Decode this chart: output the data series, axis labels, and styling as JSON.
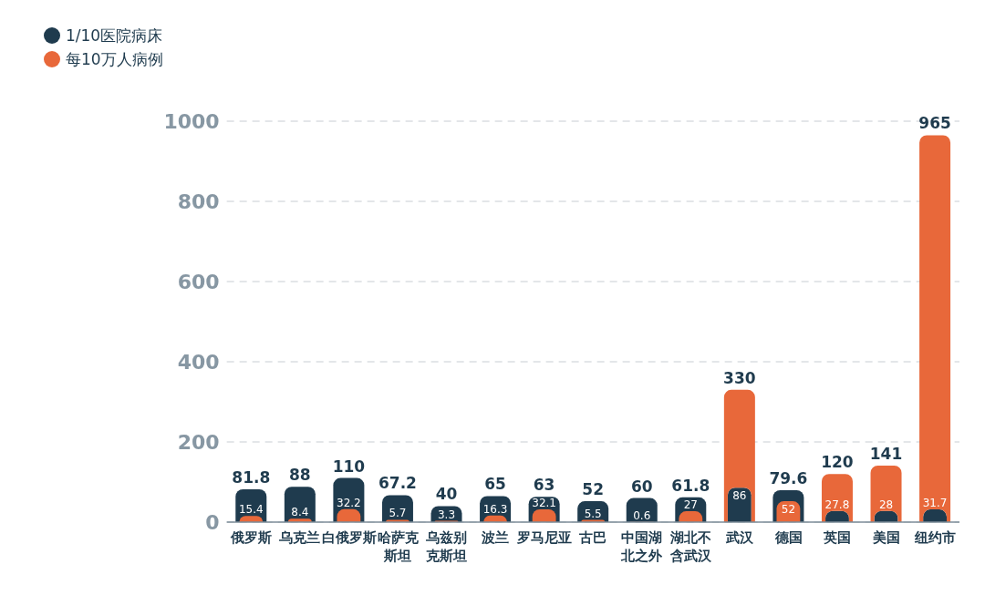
{
  "chart_data": {
    "type": "bar",
    "categories": [
      "俄罗斯",
      "乌克兰",
      "白俄罗斯",
      "哈萨克斯坦",
      "乌兹别克斯坦",
      "波兰",
      "罗马尼亚",
      "古巴",
      "中国湖北之外",
      "湖北不含武汉",
      "武汉",
      "德国",
      "英国",
      "美国",
      "纽约市"
    ],
    "series": [
      {
        "name": "1/10医院病床",
        "color": "#1f3b4e",
        "values": [
          81.8,
          88,
          110,
          67.2,
          40,
          65,
          63,
          52,
          60,
          61.8,
          86,
          79.6,
          27.8,
          28,
          31.7
        ]
      },
      {
        "name": "每10万人病例",
        "color": "#e8683a",
        "values": [
          15.4,
          8.4,
          32.2,
          5.7,
          3.3,
          16.3,
          32.1,
          5.5,
          0.6,
          27,
          330,
          52,
          120,
          141,
          965
        ]
      }
    ],
    "ylim": [
      0,
      1000
    ],
    "yticks": [
      0,
      200,
      400,
      600,
      800,
      1000
    ],
    "grid": "y",
    "legend": "top left",
    "data_labels": true
  }
}
